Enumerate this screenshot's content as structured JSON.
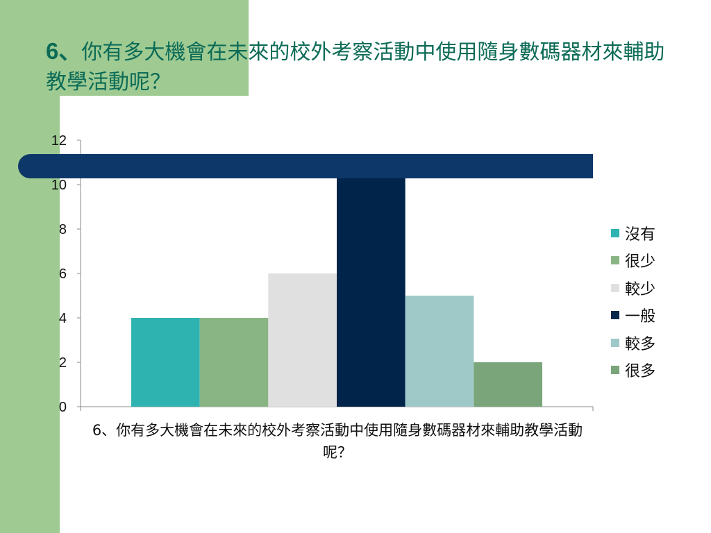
{
  "slide": {
    "title_num": "6、",
    "title_text": "你有多大機會在未來的校外考察活動中使用隨身數碼器材來輔助教學活動呢？"
  },
  "colors": {
    "background_strip": "#9fcb93",
    "title": "#0b6b56",
    "banner": "#0d3768"
  },
  "chart_data": {
    "type": "bar",
    "categories": [
      "6、你有多大機會在未來的校外考察活動中使用隨身數碼器材來輔助教學活動呢？"
    ],
    "series": [
      {
        "name": "沒有",
        "values": [
          4
        ],
        "color": "#2eb3b1"
      },
      {
        "name": "很少",
        "values": [
          4
        ],
        "color": "#89b584"
      },
      {
        "name": "較少",
        "values": [
          6
        ],
        "color": "#e0e0e0"
      },
      {
        "name": "一般",
        "values": [
          11
        ],
        "color": "#00244a"
      },
      {
        "name": "較多",
        "values": [
          5
        ],
        "color": "#9fc9c9"
      },
      {
        "name": "很多",
        "values": [
          2
        ],
        "color": "#7aa47a"
      }
    ],
    "title": "",
    "xlabel": "",
    "ylabel": "",
    "ylim": [
      0,
      12
    ],
    "yticks": [
      0,
      2,
      4,
      6,
      8,
      10,
      12
    ],
    "grid": false,
    "legend_position": "right"
  }
}
